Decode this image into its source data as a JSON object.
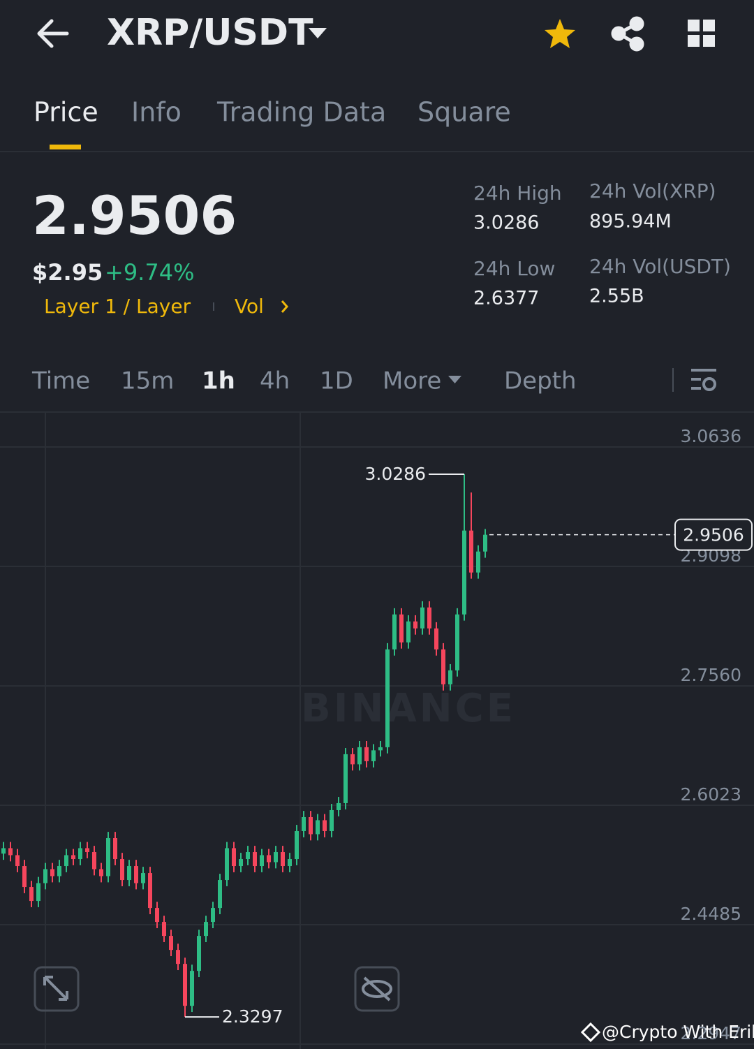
{
  "header": {
    "title": "XRP/USDT"
  },
  "tabs": [
    "Price",
    "Info",
    "Trading Data",
    "Square"
  ],
  "ticker": {
    "price": "2.9506",
    "usd_price": "$2.95",
    "change": "+9.74%",
    "tag": "Layer 1 / Layer",
    "vol_link": "Vol"
  },
  "stats": [
    {
      "label": "24h High",
      "value": "3.0286"
    },
    {
      "label": "24h Vol(XRP)",
      "value": "895.94M"
    },
    {
      "label": "24h Low",
      "value": "2.6377"
    },
    {
      "label": "24h Vol(USDT)",
      "value": "2.55B"
    }
  ],
  "intervals": [
    "Time",
    "15m",
    "1h",
    "4h",
    "1D",
    "More",
    "Depth"
  ],
  "chart_data": {
    "type": "candlestick",
    "watermark": "BINANCE",
    "up_color": "#2ebd85",
    "down_color": "#f6465d",
    "ylim": [
      2.2929,
      3.1086
    ],
    "yticks": [
      3.0636,
      2.9098,
      {
        "value": 2.756,
        "label": "2.7560"
      },
      2.6023,
      2.4485,
      2.2947
    ],
    "grid": true,
    "open": [
      2.54,
      2.547,
      2.538,
      2.524,
      2.497,
      2.479,
      2.502,
      2.52,
      2.511,
      2.524,
      2.538,
      2.533,
      2.547,
      2.542,
      2.52,
      2.511,
      2.56,
      2.533,
      2.506,
      2.524,
      2.502,
      2.515,
      2.47,
      2.452,
      2.434,
      2.416,
      2.398,
      2.344,
      2.389,
      2.434,
      2.452,
      2.47,
      2.506,
      2.547,
      2.524,
      2.533,
      2.542,
      2.524,
      2.538,
      2.529,
      2.542,
      2.524,
      2.533,
      2.569,
      2.587,
      2.565,
      2.583,
      2.569,
      2.596,
      2.605,
      2.668,
      2.655,
      2.677,
      2.659,
      2.673,
      2.677,
      2.803,
      2.848,
      2.812,
      2.839,
      2.83,
      2.857,
      2.83,
      2.803,
      2.758,
      2.776,
      2.848,
      2.956,
      2.902,
      2.929
    ],
    "high": [
      2.555,
      2.555,
      2.546,
      2.532,
      2.505,
      2.51,
      2.528,
      2.528,
      2.532,
      2.546,
      2.546,
      2.555,
      2.555,
      2.55,
      2.528,
      2.568,
      2.568,
      2.541,
      2.532,
      2.532,
      2.523,
      2.523,
      2.478,
      2.46,
      2.442,
      2.424,
      2.406,
      2.397,
      2.442,
      2.46,
      2.478,
      2.514,
      2.555,
      2.555,
      2.541,
      2.55,
      2.55,
      2.546,
      2.546,
      2.55,
      2.55,
      2.541,
      2.577,
      2.595,
      2.595,
      2.591,
      2.591,
      2.604,
      2.613,
      2.676,
      2.676,
      2.685,
      2.685,
      2.681,
      2.685,
      2.811,
      2.856,
      2.856,
      2.847,
      2.847,
      2.865,
      2.865,
      2.838,
      2.811,
      2.784,
      2.856,
      3.0286,
      3.005,
      2.937,
      2.958
    ],
    "low": [
      2.532,
      2.53,
      2.516,
      2.489,
      2.471,
      2.471,
      2.494,
      2.503,
      2.503,
      2.516,
      2.525,
      2.525,
      2.534,
      2.512,
      2.503,
      2.503,
      2.525,
      2.498,
      2.498,
      2.494,
      2.494,
      2.462,
      2.444,
      2.426,
      2.408,
      2.39,
      2.3297,
      2.336,
      2.381,
      2.426,
      2.444,
      2.462,
      2.498,
      2.516,
      2.516,
      2.525,
      2.516,
      2.516,
      2.521,
      2.521,
      2.516,
      2.516,
      2.525,
      2.561,
      2.557,
      2.557,
      2.561,
      2.561,
      2.588,
      2.597,
      2.647,
      2.647,
      2.651,
      2.651,
      2.665,
      2.669,
      2.795,
      2.804,
      2.804,
      2.822,
      2.822,
      2.822,
      2.795,
      2.75,
      2.75,
      2.768,
      2.84,
      2.894,
      2.894,
      2.921
    ],
    "close": [
      2.547,
      2.538,
      2.524,
      2.497,
      2.479,
      2.502,
      2.52,
      2.511,
      2.524,
      2.538,
      2.533,
      2.547,
      2.542,
      2.52,
      2.511,
      2.56,
      2.533,
      2.506,
      2.524,
      2.502,
      2.515,
      2.47,
      2.452,
      2.434,
      2.416,
      2.398,
      2.344,
      2.389,
      2.434,
      2.452,
      2.47,
      2.506,
      2.547,
      2.524,
      2.533,
      2.542,
      2.524,
      2.538,
      2.529,
      2.542,
      2.524,
      2.533,
      2.569,
      2.587,
      2.565,
      2.583,
      2.569,
      2.596,
      2.605,
      2.668,
      2.655,
      2.677,
      2.659,
      2.673,
      2.677,
      2.803,
      2.848,
      2.812,
      2.839,
      2.83,
      2.857,
      2.83,
      2.803,
      2.758,
      2.776,
      2.848,
      2.956,
      2.902,
      2.929,
      2.9506
    ]
  },
  "footer_watermark": "@Crypto With Erik"
}
